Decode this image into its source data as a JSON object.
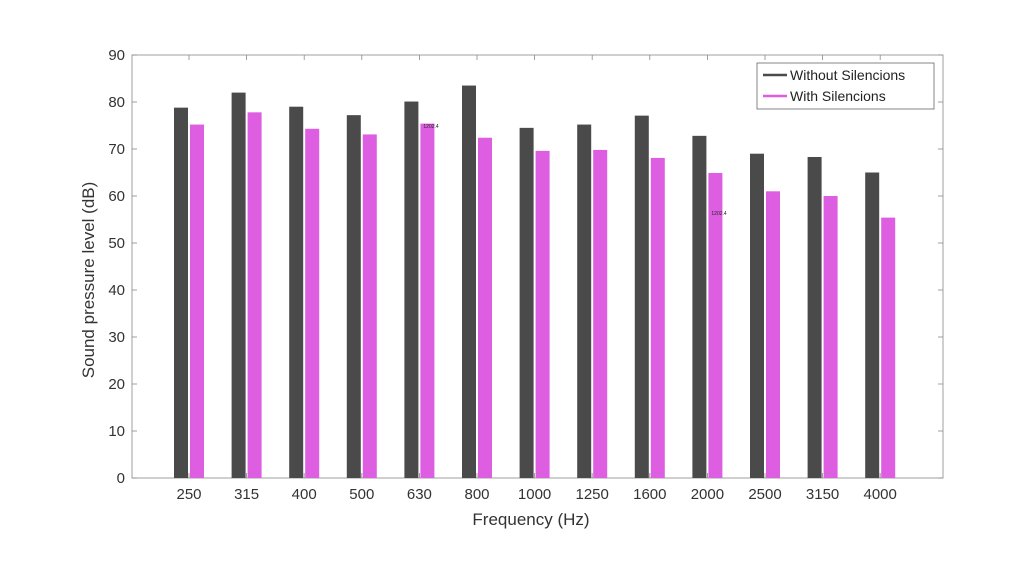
{
  "chart_data": {
    "type": "bar",
    "title": "",
    "xlabel": "Frequency (Hz)",
    "ylabel": "Sound pressure level (dB)",
    "ylim": [
      0,
      90
    ],
    "yticks": [
      0,
      10,
      20,
      30,
      40,
      50,
      60,
      70,
      80,
      90
    ],
    "grid": false,
    "legend_position": "top-right",
    "categories": [
      "250",
      "315",
      "400",
      "500",
      "630",
      "800",
      "1000",
      "1250",
      "1600",
      "2000",
      "2500",
      "3150",
      "4000"
    ],
    "series": [
      {
        "name": "Without Silencions",
        "color": "#4a4a4a",
        "values": [
          78.8,
          82.0,
          79.0,
          77.2,
          80.1,
          83.5,
          74.5,
          75.2,
          77.1,
          72.8,
          69.0,
          68.3,
          65.0
        ]
      },
      {
        "name": "With Silencions",
        "color": "#dd5ee0",
        "values": [
          75.2,
          77.8,
          74.3,
          73.1,
          75.4,
          72.4,
          69.6,
          69.8,
          68.1,
          64.9,
          61.0,
          60.0,
          55.4
        ]
      }
    ],
    "annotations": [
      {
        "text": "1202.4",
        "category": "630",
        "y": 74.5
      },
      {
        "text": "1202.4",
        "category": "2000",
        "y": 56.0
      }
    ]
  }
}
